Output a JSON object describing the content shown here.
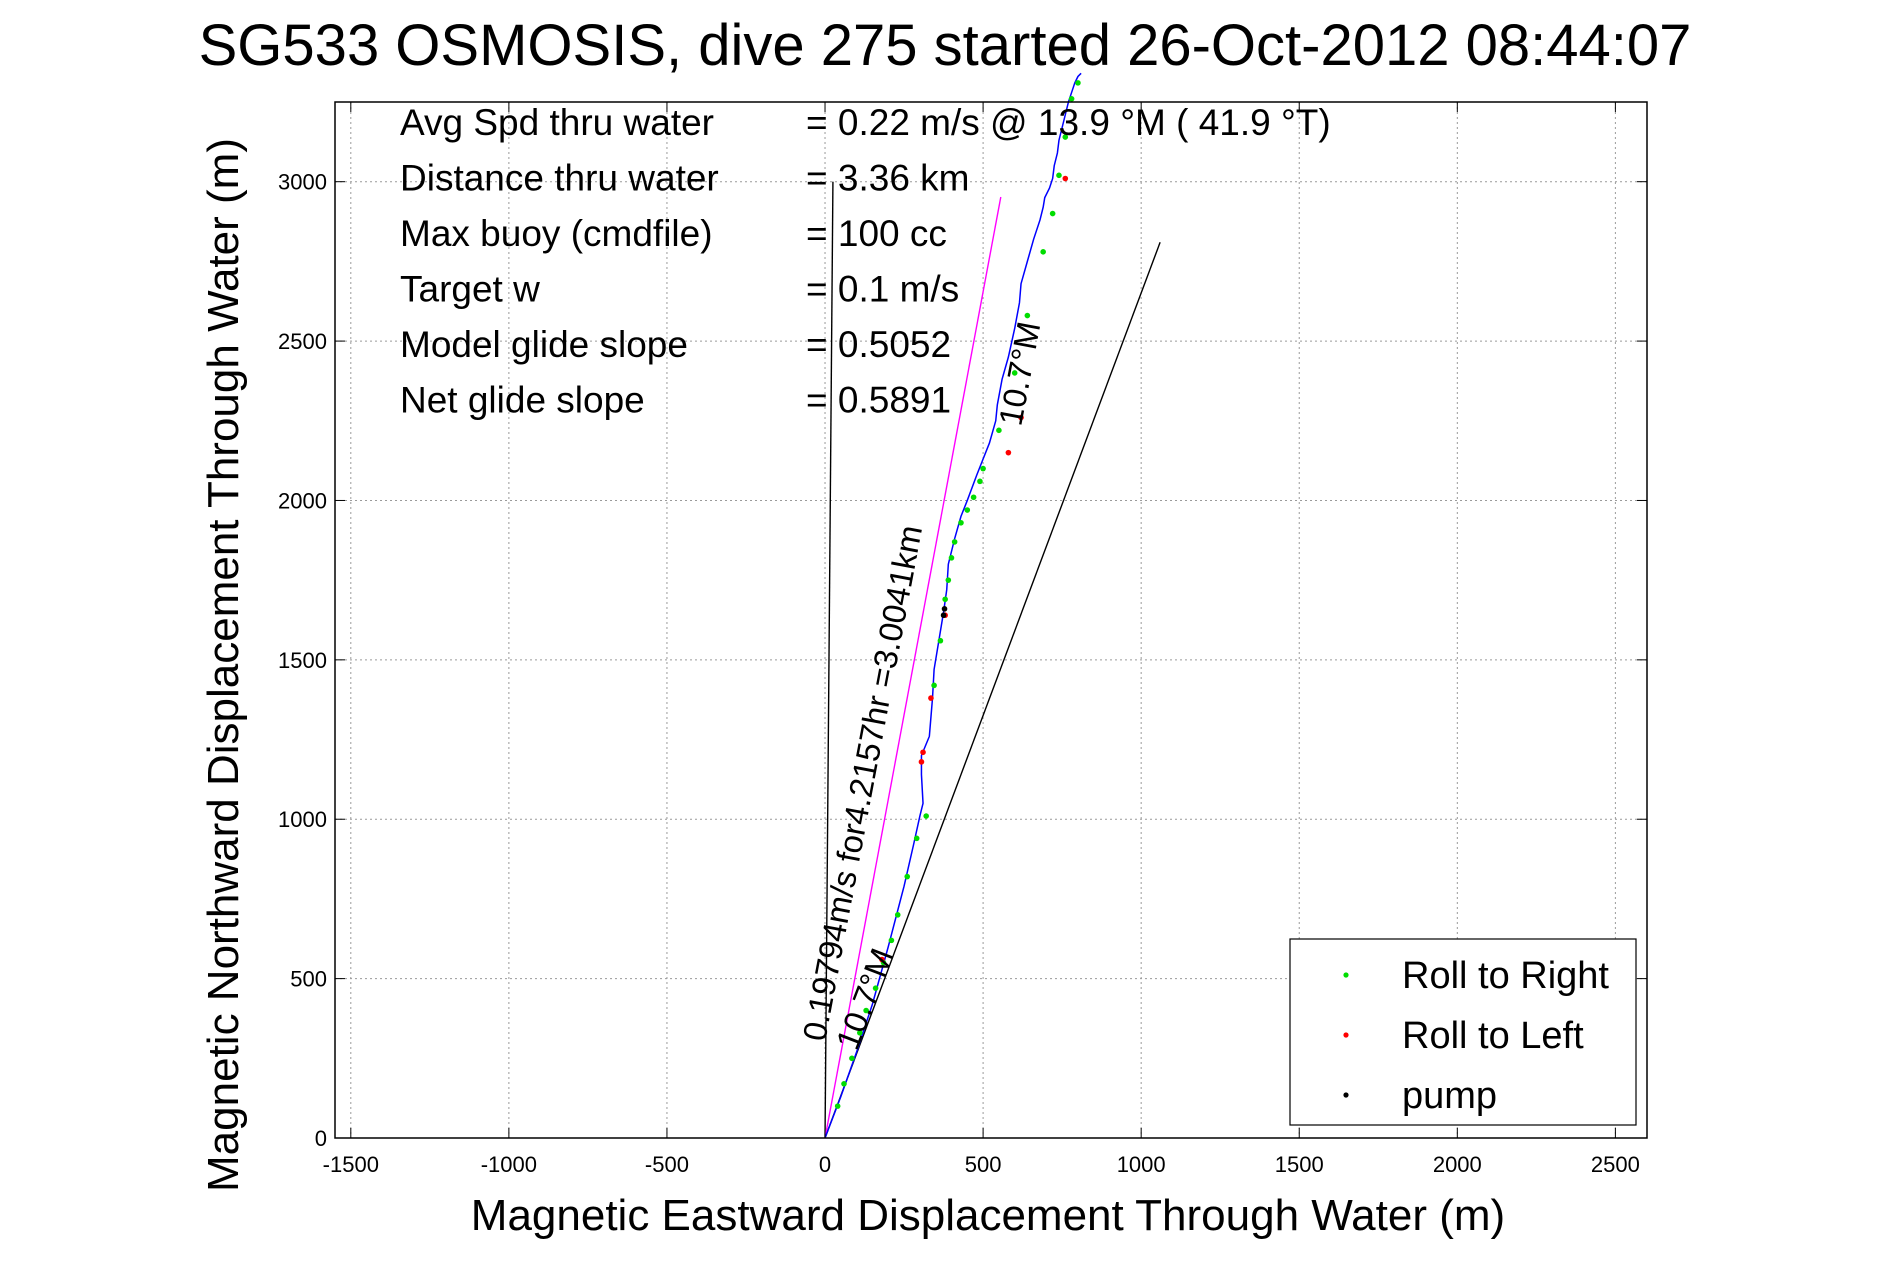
{
  "chart_data": {
    "type": "line",
    "title": "SG533 OSMOSIS, dive 275 started 26-Oct-2012 08:44:07",
    "xlabel": "Magnetic Eastward Displacement Through Water (m)",
    "ylabel": "Magnetic Northward Displacement Through Water (m)",
    "xlim": [
      -1550,
      2600
    ],
    "ylim": [
      0,
      3250
    ],
    "xticks": [
      -1500,
      -1000,
      -500,
      0,
      500,
      1000,
      1500,
      2000,
      2500
    ],
    "yticks": [
      0,
      500,
      1000,
      1500,
      2000,
      2500,
      3000
    ],
    "grid": true,
    "legend_position": "bottom-right",
    "info_lines": [
      {
        "label": "Avg Spd thru water",
        "value": "=  0.22 m/s @  13.9 °M ( 41.9 °T)"
      },
      {
        "label": "Distance thru water",
        "value": "=  3.36 km"
      },
      {
        "label": "Max buoy (cmdfile)",
        "value": "= 100 cc"
      },
      {
        "label": "Target w",
        "value": "= 0.1 m/s"
      },
      {
        "label": "Model glide slope",
        "value": "= 0.5052"
      },
      {
        "label": "Net glide slope",
        "value": "= 0.5891"
      }
    ],
    "annotations": [
      {
        "text": "0.19794m/s for4.2157hr =3.0041km",
        "anchor": [
          0,
          300
        ],
        "rotation": -79.3
      },
      {
        "text": "10.7°M",
        "anchor": [
          100,
          270
        ],
        "rotation": -69
      },
      {
        "text": "10.7°M",
        "anchor": [
          620,
          2230
        ],
        "rotation": -79.3
      }
    ],
    "lines": [
      {
        "id": "north-ref",
        "color": "#000000",
        "x": [
          0,
          25
        ],
        "y": [
          0,
          3000
        ]
      },
      {
        "id": "heading-ref",
        "color": "#000000",
        "x": [
          0,
          1060
        ],
        "y": [
          0,
          2810
        ]
      },
      {
        "id": "avg-speed-vector",
        "color": "#ff00ff",
        "x": [
          0,
          556
        ],
        "y": [
          0,
          2952
        ]
      }
    ],
    "series": [
      {
        "name": "track",
        "color": "#0000ff",
        "marker": "line",
        "x": [
          0,
          50,
          100,
          150,
          200,
          250,
          280,
          300,
          310,
          305,
          305,
          330,
          340,
          345,
          360,
          375,
          385,
          390,
          410,
          430,
          450,
          480,
          500,
          520,
          540,
          545,
          560,
          580,
          600,
          615,
          620,
          640,
          660,
          680,
          690,
          695,
          710,
          720,
          725,
          735,
          740,
          750,
          760,
          770,
          780,
          790,
          800,
          810
        ],
        "y": [
          0,
          130,
          270,
          420,
          600,
          790,
          920,
          1010,
          1050,
          1140,
          1200,
          1260,
          1380,
          1470,
          1560,
          1650,
          1720,
          1800,
          1880,
          1950,
          2000,
          2080,
          2130,
          2180,
          2250,
          2300,
          2380,
          2450,
          2540,
          2620,
          2680,
          2750,
          2820,
          2880,
          2920,
          2950,
          2980,
          3010,
          3050,
          3090,
          3130,
          3170,
          3210,
          3250,
          3280,
          3310,
          3330,
          3340
        ]
      },
      {
        "name": "Roll to Right",
        "color": "#00dd00",
        "marker": "dot",
        "x": [
          40,
          60,
          85,
          110,
          130,
          160,
          185,
          210,
          230,
          260,
          290,
          320,
          345,
          365,
          380,
          390,
          400,
          410,
          430,
          450,
          470,
          490,
          500,
          550,
          600,
          640,
          690,
          720,
          740,
          760,
          780,
          800
        ],
        "y": [
          100,
          170,
          250,
          330,
          400,
          470,
          550,
          620,
          700,
          820,
          940,
          1010,
          1420,
          1560,
          1690,
          1750,
          1820,
          1870,
          1930,
          1970,
          2010,
          2060,
          2100,
          2220,
          2400,
          2580,
          2780,
          2900,
          3020,
          3140,
          3260,
          3310
        ]
      },
      {
        "name": "Roll to Left",
        "color": "#ff0000",
        "marker": "dot",
        "x": [
          180,
          305,
          310,
          335,
          380,
          580,
          620,
          760
        ],
        "y": [
          560,
          1180,
          1210,
          1380,
          1640,
          2150,
          2260,
          3010
        ]
      },
      {
        "name": "pump",
        "color": "#000000",
        "marker": "dot",
        "x": [
          375,
          378
        ],
        "y": [
          1640,
          1660
        ]
      }
    ]
  }
}
